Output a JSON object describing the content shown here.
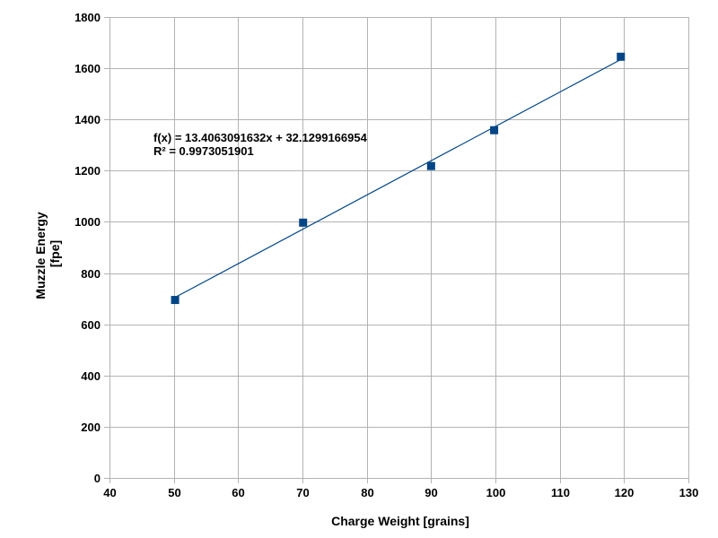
{
  "chart_data": {
    "type": "scatter",
    "title": "",
    "xlabel": "Charge Weight [grains]",
    "ylabel_lines": [
      "Muzzle Energy",
      "[fpe]"
    ],
    "xlim": [
      40,
      130
    ],
    "ylim": [
      0,
      1800
    ],
    "xticks": [
      40,
      50,
      60,
      70,
      80,
      90,
      100,
      110,
      120,
      130
    ],
    "yticks": [
      0,
      200,
      400,
      600,
      800,
      1000,
      1200,
      1400,
      1600,
      1800
    ],
    "grid": true,
    "legend": "none",
    "series": [
      {
        "points": [
          {
            "x": 50.2,
            "y": 695
          },
          {
            "x": 70.1,
            "y": 997
          },
          {
            "x": 90.0,
            "y": 1218
          },
          {
            "x": 99.8,
            "y": 1358
          },
          {
            "x": 119.5,
            "y": 1645
          }
        ],
        "marker": "square",
        "color": "#004586"
      }
    ],
    "trendline": {
      "type": "linear",
      "slope": 13.4063091632,
      "intercept": 32.1299166954,
      "x_range": [
        50.2,
        119.5
      ],
      "color": "#004586"
    },
    "annotations": [
      "f(x) = 13.4063091632x + 32.1299166954",
      "R² = 0.9973051901"
    ],
    "gridColor": "#b3b3b3",
    "axisColor": "#b3b3b3"
  }
}
